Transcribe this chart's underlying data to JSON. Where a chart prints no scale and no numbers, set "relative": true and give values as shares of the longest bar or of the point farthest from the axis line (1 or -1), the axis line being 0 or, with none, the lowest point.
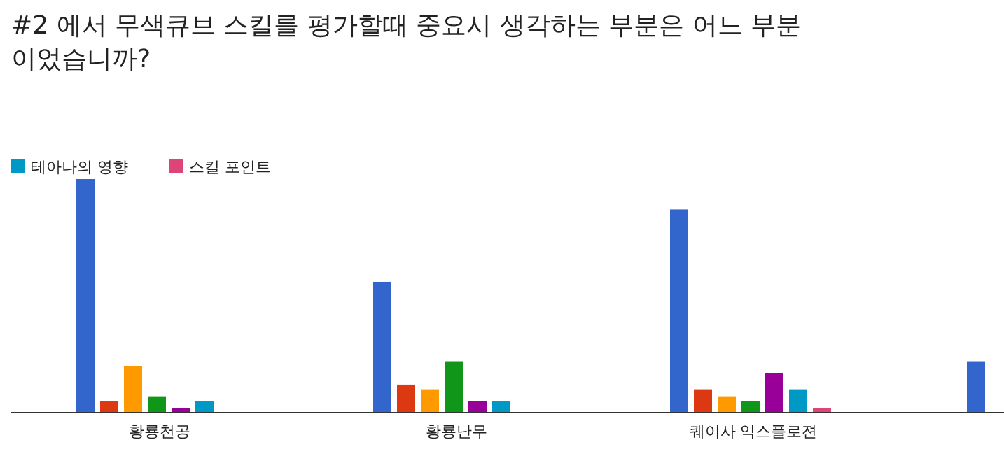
{
  "chart_data": {
    "type": "bar",
    "title": "#2 에서 무색큐브 스킬를 평가할때 중요시 생각하는 부분은 어느 부분 이었습니까?",
    "relative": true,
    "legend": "top left",
    "categories": [
      "황룡천공",
      "황룡난무",
      "퀘이사 익스플로젼",
      null
    ],
    "series": [
      {
        "color": "#3366cc",
        "values": [
          1,
          0.56,
          0.87,
          0.22
        ]
      },
      {
        "color": "#dc3912",
        "values": [
          0.05,
          0.12,
          0.1,
          null
        ]
      },
      {
        "color": "#ff9900",
        "values": [
          0.2,
          0.1,
          0.07,
          null
        ]
      },
      {
        "color": "#109618",
        "values": [
          0.07,
          0.22,
          0.05,
          null
        ]
      },
      {
        "color": "#990099",
        "values": [
          0.02,
          0.05,
          0.17,
          null
        ]
      },
      {
        "name": "테아나의 영향",
        "color": "#0099c6",
        "values": [
          0.05,
          0.05,
          0.1,
          null
        ]
      },
      {
        "name": "스킬 포인트",
        "color": "#dd4477",
        "values": [
          null,
          null,
          0.02,
          null
        ]
      }
    ]
  }
}
